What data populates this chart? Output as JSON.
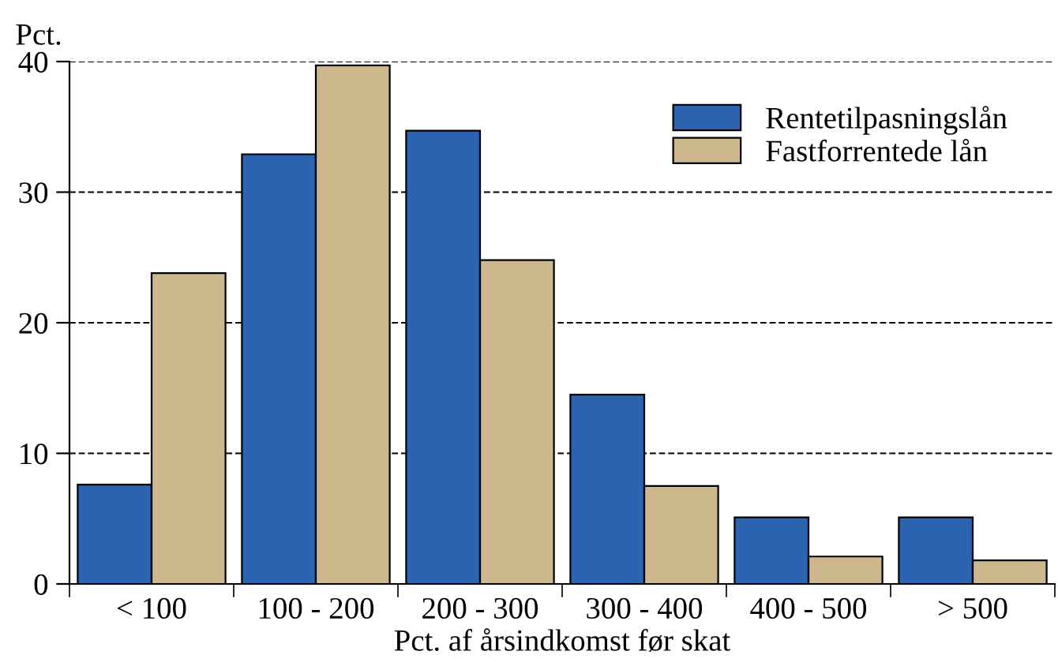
{
  "chart_data": {
    "type": "bar",
    "ylabel": "Pct.",
    "xlabel": "Pct. af årsindkomst før skat",
    "categories": [
      "< 100",
      "100 - 200",
      "200 - 300",
      "300 - 400",
      "400 - 500",
      "> 500"
    ],
    "series": [
      {
        "name": "Rentetilpasningslån",
        "color": "#2b63b0",
        "values": [
          7.6,
          32.9,
          34.7,
          14.5,
          5.1,
          5.1
        ]
      },
      {
        "name": "Fastforrentede lån",
        "color": "#cdb78c",
        "values": [
          23.8,
          39.7,
          24.8,
          7.5,
          2.1,
          1.8
        ]
      }
    ],
    "ylim": [
      0,
      40
    ],
    "yticks": [
      0,
      10,
      20,
      30,
      40
    ],
    "grid": "y",
    "legend": "top right"
  }
}
